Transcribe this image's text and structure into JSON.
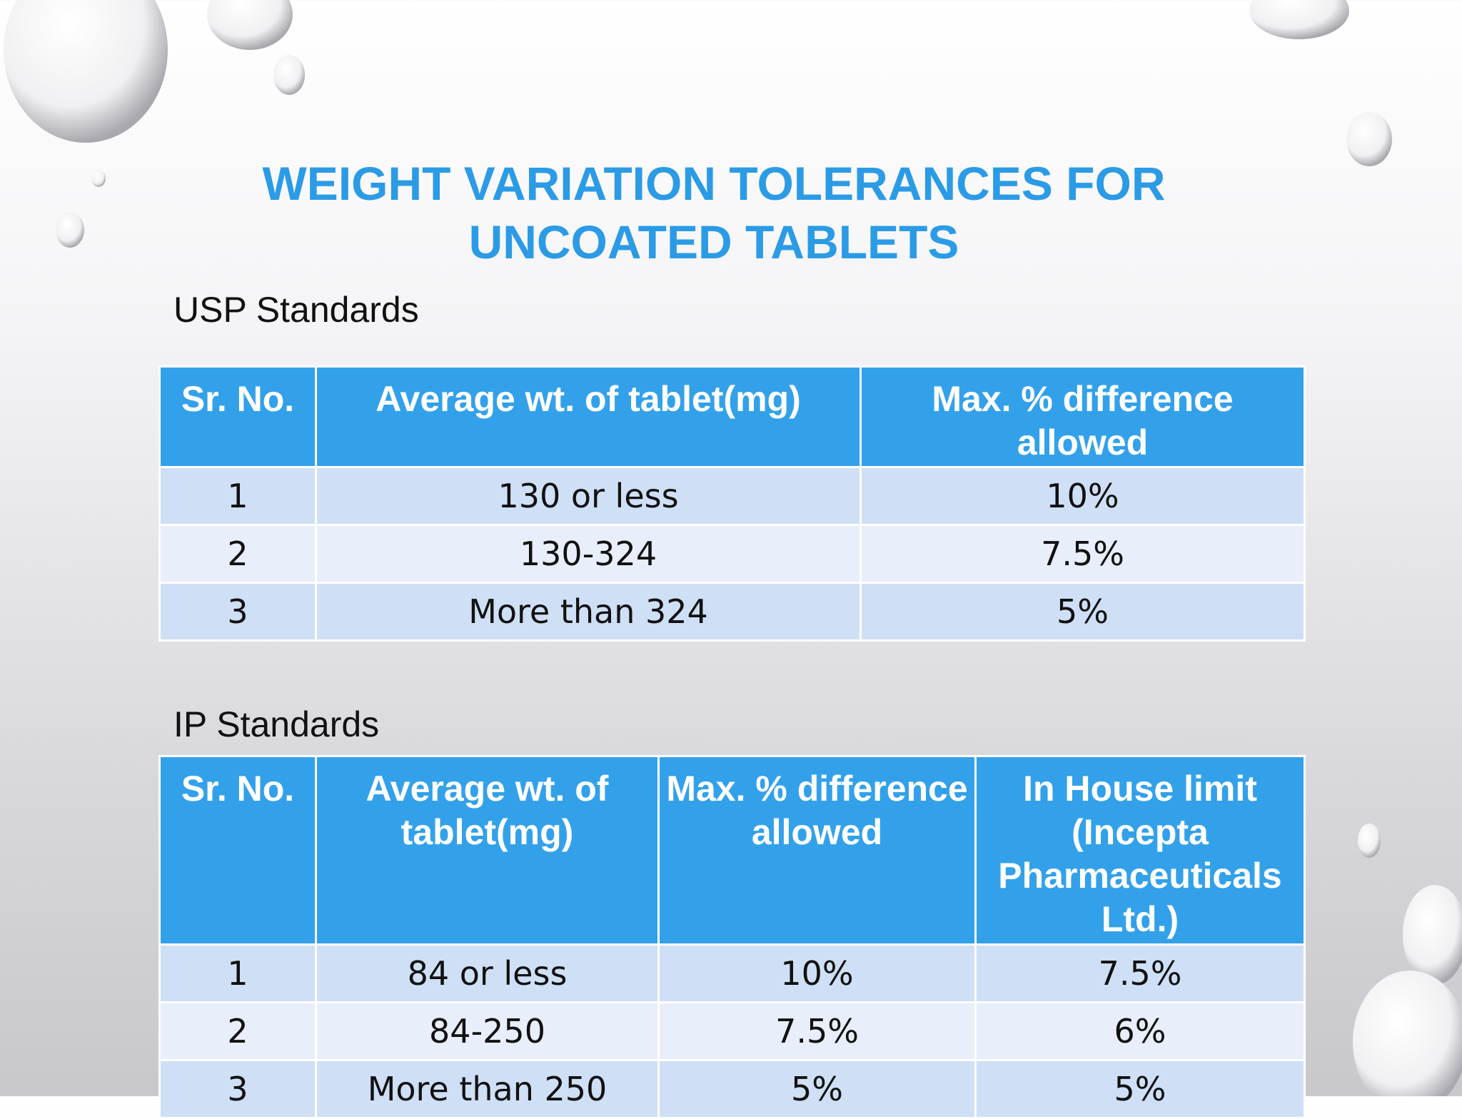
{
  "title": {
    "line1": "WEIGHT VARIATION TOLERANCES FOR",
    "line2": "UNCOATED TABLETS"
  },
  "usp": {
    "heading": "USP Standards",
    "table": {
      "header": [
        "Sr. No.",
        "Average wt. of tablet(mg)",
        "Max. % difference allowed"
      ],
      "rows": [
        [
          "1",
          "130 or less",
          "10%"
        ],
        [
          "2",
          "130-324",
          "7.5%"
        ],
        [
          "3",
          "More than 324",
          "5%"
        ]
      ]
    }
  },
  "ip": {
    "heading": "IP Standards",
    "table": {
      "header": [
        "Sr. No.",
        "Average wt. of tablet(mg)",
        "Max. % difference allowed",
        "In House limit (Incepta Pharmaceuticals Ltd.)"
      ],
      "rows": [
        [
          "1",
          "84 or less",
          "10%",
          "7.5%"
        ],
        [
          "2",
          "84-250",
          "7.5%",
          "6%"
        ],
        [
          "3",
          "More than 250",
          "5%",
          "5%"
        ]
      ]
    }
  }
}
